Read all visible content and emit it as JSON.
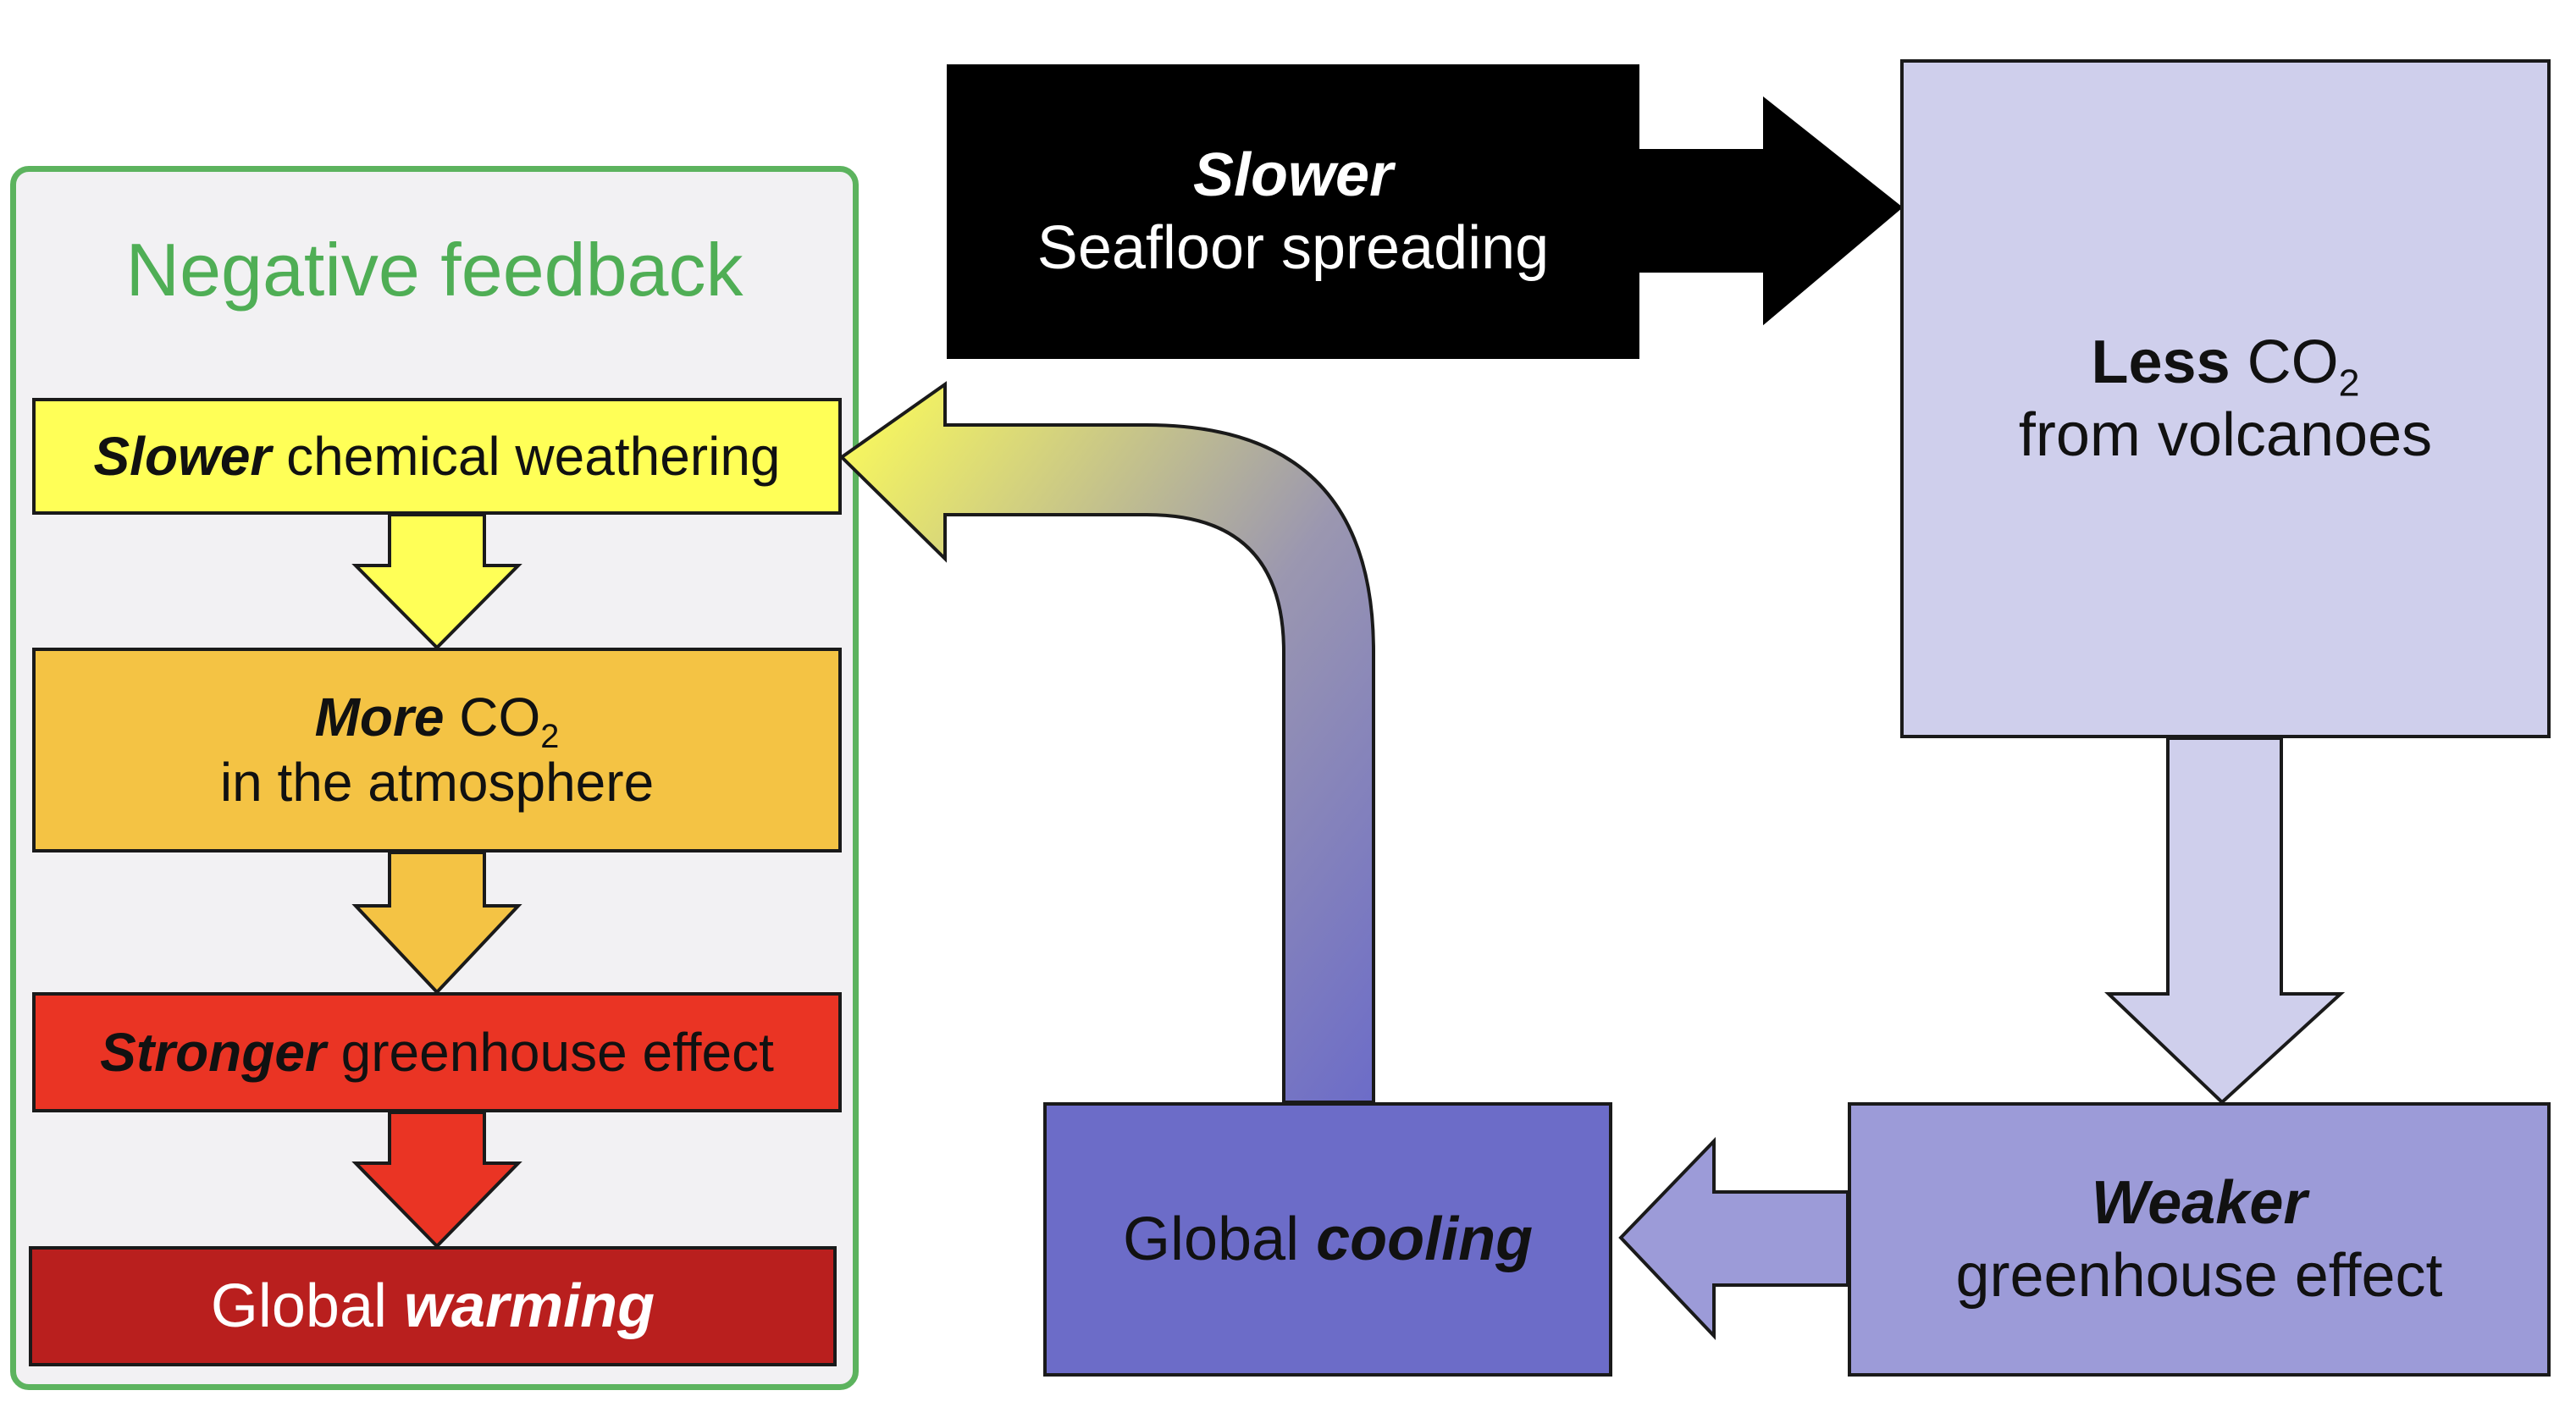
{
  "panel": {
    "title": "Negative feedback"
  },
  "left_chain": {
    "weathering": {
      "emph": "Slower",
      "rest": " chemical weathering"
    },
    "more_co2": {
      "emph": "More",
      "rest": " CO",
      "sub": "2",
      "line2": "in the atmosphere"
    },
    "stronger": {
      "emph": "Stronger",
      "rest": " greenhouse effect"
    },
    "warming": {
      "plain": "Global ",
      "emph": "warming"
    }
  },
  "right_loop": {
    "seafloor": {
      "emph": "Slower",
      "line2": "Seafloor spreading"
    },
    "less_co2": {
      "emph": "Less",
      "rest": " CO",
      "sub": "2",
      "line2": "from volcanoes"
    },
    "weaker": {
      "emph": "Weaker",
      "line2": "greenhouse effect"
    },
    "cooling": {
      "plain": "Global ",
      "emph": "cooling"
    }
  },
  "colors": {
    "panel_border": "#5cb35e",
    "yellow": "#ffff57",
    "orange": "#f4c344",
    "red": "#ea3424",
    "dark_red": "#b91f1e",
    "black": "#000000",
    "lavender": "#cfcfec",
    "periwinkle": "#9c9bd8",
    "blue": "#6c6cc8"
  }
}
